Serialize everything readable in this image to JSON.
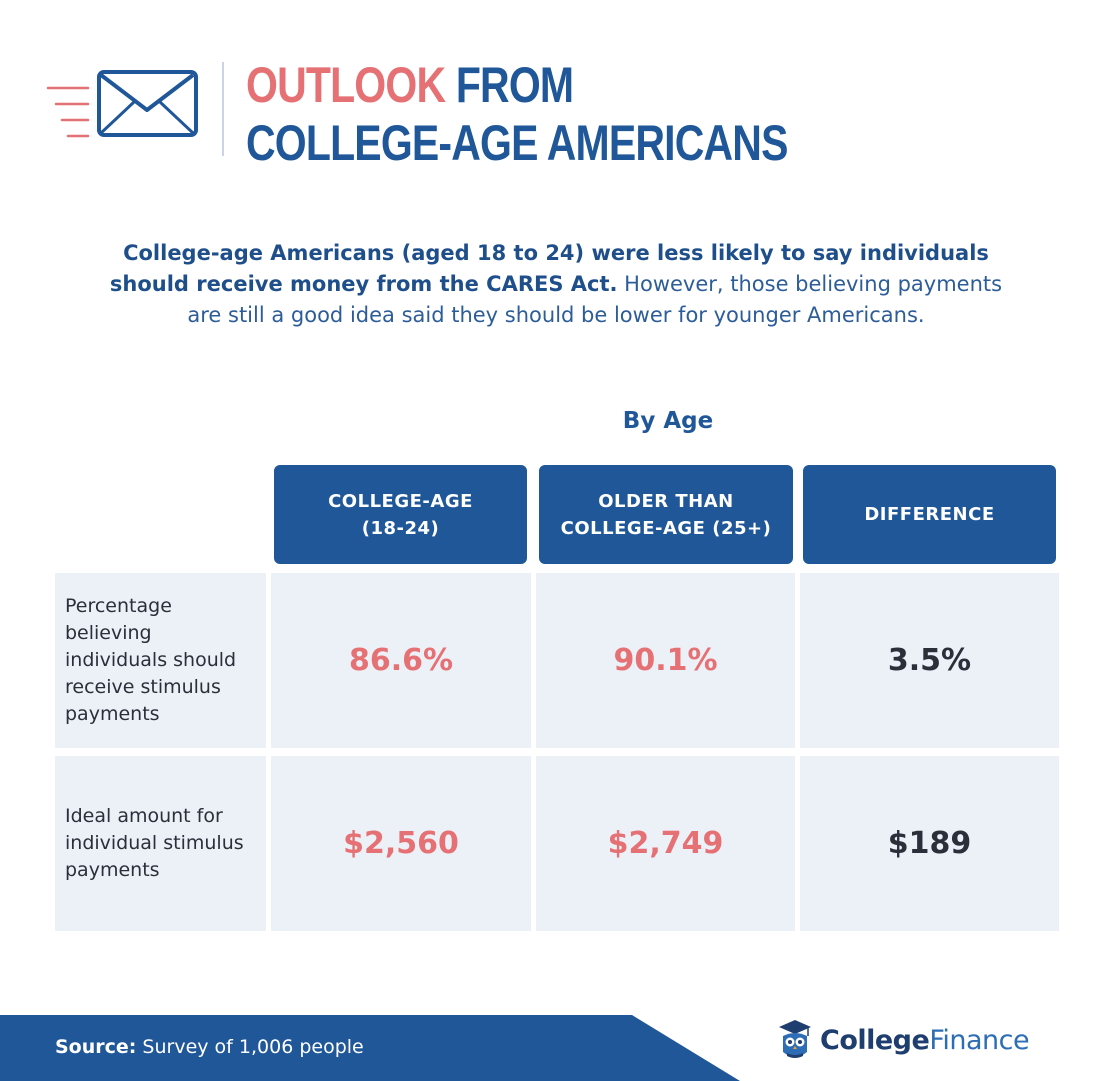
{
  "header": {
    "title_accent": "OUTLOOK",
    "title_line1_rest": " FROM",
    "title_line2": "COLLEGE-AGE AMERICANS",
    "icon": "envelope-icon"
  },
  "intro": {
    "bold": "College-age Americans (aged 18 to 24) were less likely to say individuals should receive money from the CARES Act.",
    "regular": " However, those believing payments are still a good idea said they should be lower for younger Americans."
  },
  "chart_data": {
    "type": "table",
    "title": "By Age",
    "columns": [
      {
        "line1": "COLLEGE-AGE",
        "line2": "(18-24)"
      },
      {
        "line1": "OLDER THAN",
        "line2": "COLLEGE-AGE (25+)"
      },
      {
        "line1": "DIFFERENCE",
        "line2": ""
      }
    ],
    "rows": [
      {
        "label": "Percentage believing individuals should receive stimulus payments",
        "values": [
          "86.6%",
          "90.1%",
          "3.5%"
        ]
      },
      {
        "label": "Ideal amount for individual stimulus payments",
        "values": [
          "$2,560",
          "$2,749",
          "$189"
        ]
      }
    ]
  },
  "footer": {
    "source_label": "Source:",
    "source_text": " Survey of 1,006 people",
    "logo_college": "College",
    "logo_finance": "Finance",
    "logo_icon": "owl-graduate-icon"
  },
  "colors": {
    "navy": "#1f5799",
    "coral": "#e57174",
    "cell_bg": "#ecf0f7",
    "dark_text": "#2b2f3a"
  }
}
